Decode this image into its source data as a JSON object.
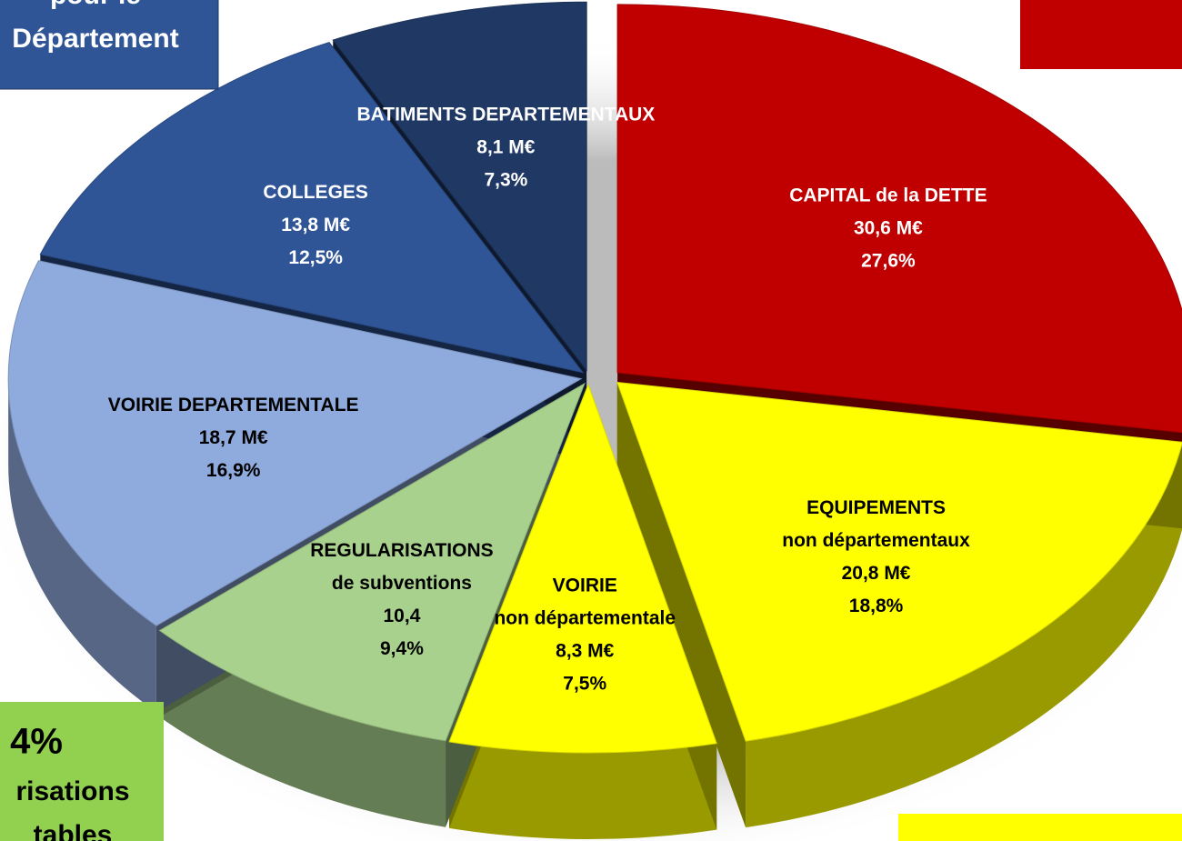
{
  "chart_data": {
    "type": "pie",
    "categories": [
      [
        "CAPITAL de la DETTE"
      ],
      [
        "EQUIPEMENTS",
        "non départementaux"
      ],
      [
        "VOIRIE",
        "non départementale"
      ],
      [
        "REGULARISATIONS",
        "de subventions"
      ],
      [
        "VOIRIE DEPARTEMENTALE"
      ],
      [
        "COLLEGES"
      ],
      [
        "BATIMENTS DEPARTEMENTAUX"
      ]
    ],
    "values": [
      27.6,
      18.8,
      7.5,
      9.4,
      16.9,
      12.5,
      7.3
    ],
    "value_labels": [
      "27,6%",
      "18,8%",
      "7,5%",
      "9,4%",
      "16,9%",
      "12,5%",
      "7,3%"
    ],
    "amount_labels": [
      "30,6 M€",
      "20,8 M€",
      "8,3 M€",
      "10,4",
      "18,7 M€",
      "13,8 M€",
      "8,1 M€"
    ],
    "colors": [
      "#c00000",
      "#ffff00",
      "#ffff00",
      "#a9d18e",
      "#8faadc",
      "#2f5597",
      "#1f3864"
    ],
    "label_colors": [
      "#ffffff",
      "#000000",
      "#000000",
      "#000000",
      "#000000",
      "#ffffff",
      "#ffffff"
    ],
    "annotations": {
      "top_left": [
        "pour le",
        "Département"
      ],
      "bottom_left": [
        "4%",
        "risations",
        "tables"
      ]
    }
  }
}
